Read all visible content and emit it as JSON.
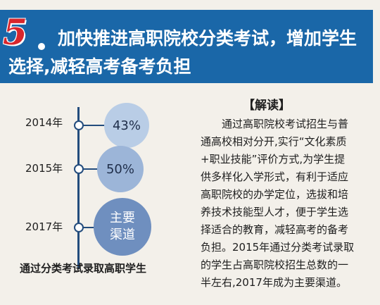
{
  "banner": {
    "number": "5",
    "title_line1": "加快推进高职院校分类考试，增加学生",
    "title_line2": "选择,减轻高考备考负担"
  },
  "timeline": {
    "items": [
      {
        "year": "2014年",
        "value": "43%"
      },
      {
        "year": "2015年",
        "value": "50%"
      },
      {
        "year": "2017年",
        "value_line1": "主要",
        "value_line2": "渠道"
      }
    ],
    "caption": "通过分类考试录取高职学生"
  },
  "explain": {
    "heading": "【解读】",
    "lines": [
      "通过高职院校考试招生与普",
      "通高校相对分开,实行“文化素质",
      "+职业技能”评价方式,为学生提",
      "供多样化入学形式，有利于适应",
      "高职院校的办学定位，选拔和培",
      "养技术技能型人才，便于学生选",
      "择适合的教育，减轻高考的备考",
      "负担。2015年通过分类考试录取",
      "的学生占高职院校招生总数的一",
      "半左右,2017年成为主要渠道。"
    ]
  },
  "colors": {
    "banner": "#1a67a8",
    "number": "#d8262c",
    "timeline": "#234c7d"
  }
}
